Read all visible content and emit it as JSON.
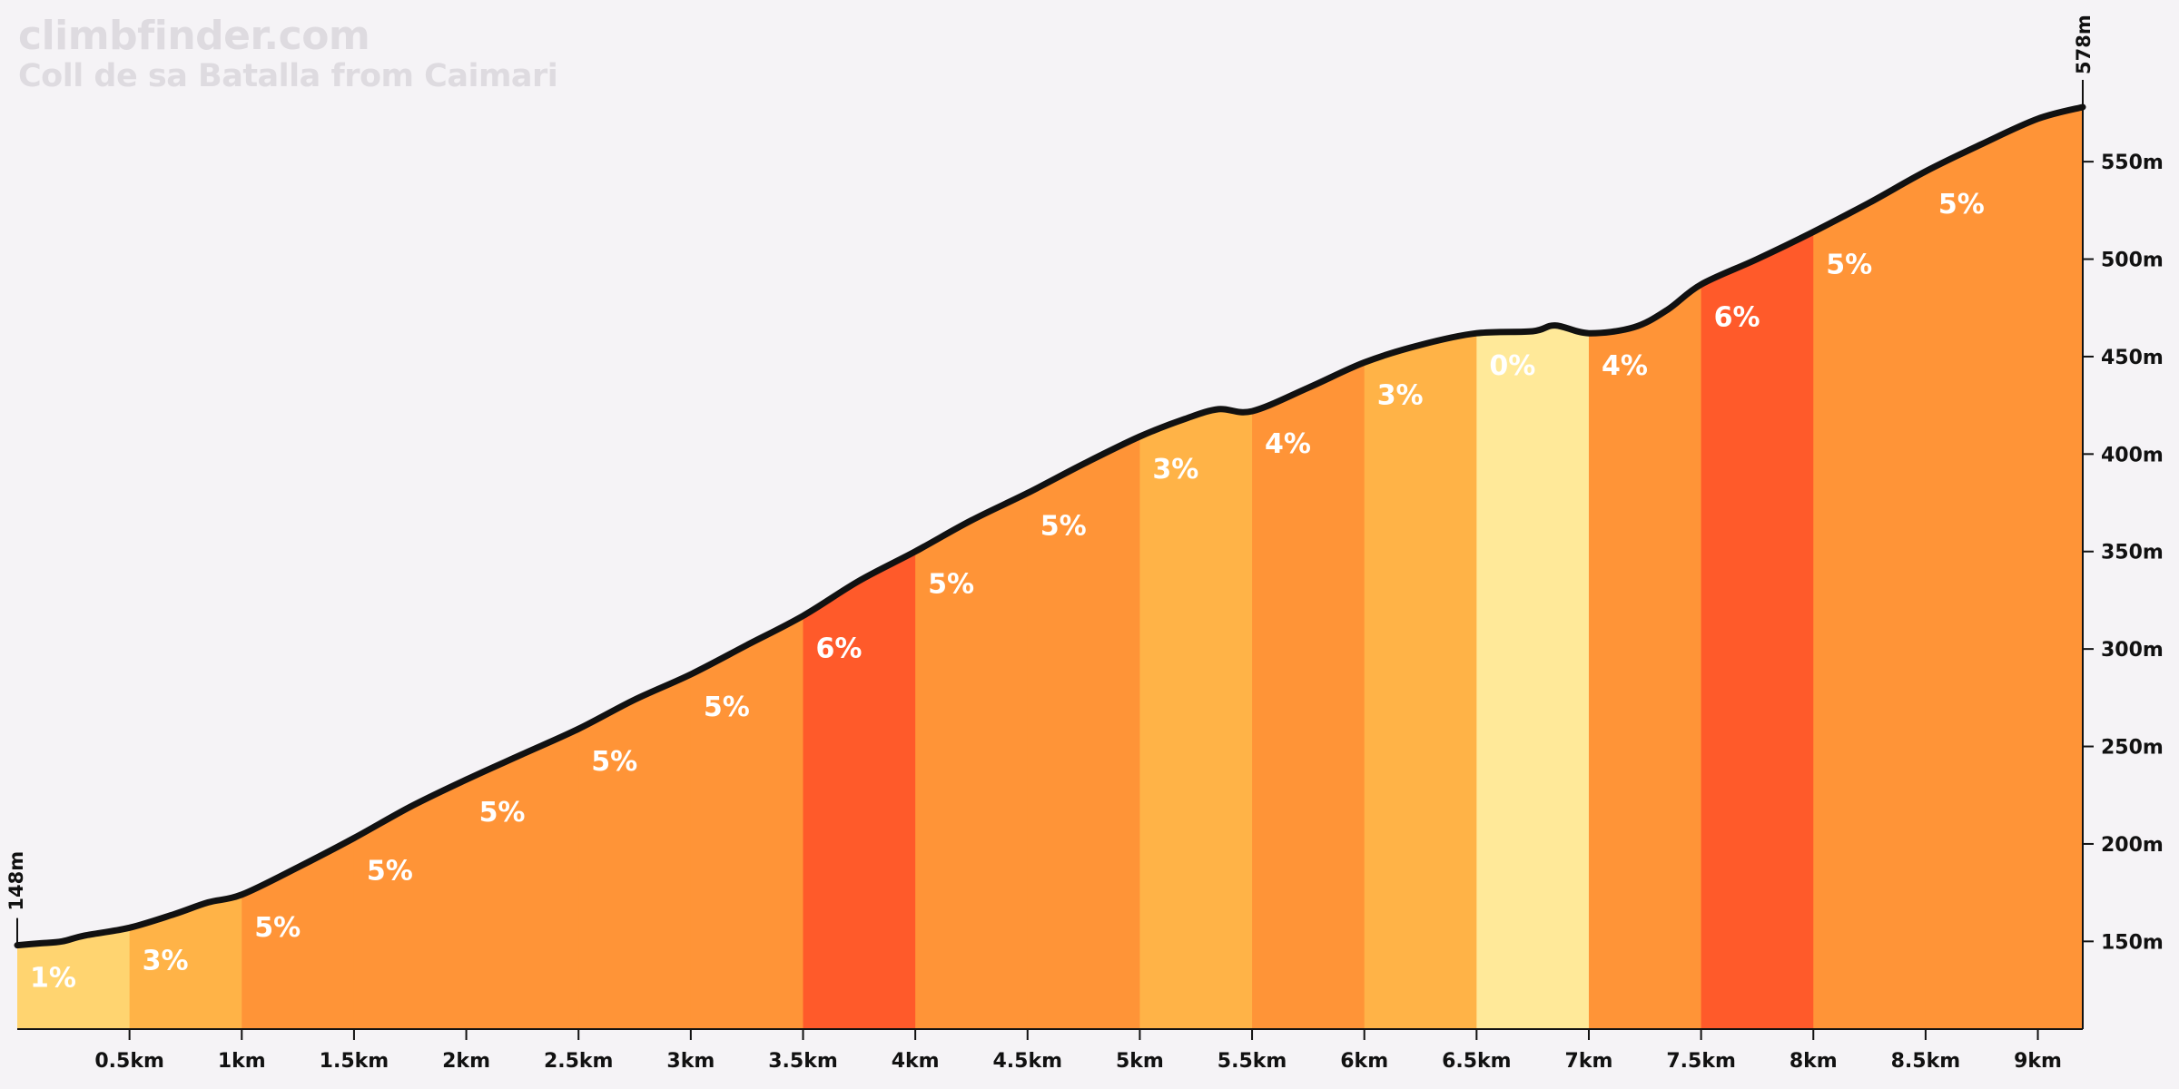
{
  "watermark": {
    "site": "climbfinder.com",
    "climb": "Coll de sa Batalla from Caimari"
  },
  "chart_data": {
    "type": "area",
    "title": "Coll de sa Batalla from Caimari",
    "xlabel": "",
    "ylabel": "",
    "xlim_km": [
      0,
      9.2
    ],
    "ylim_m": [
      105,
      578
    ],
    "x_ticks": [
      {
        "value": 0.5,
        "label": "0.5km"
      },
      {
        "value": 1,
        "label": "1km"
      },
      {
        "value": 1.5,
        "label": "1.5km"
      },
      {
        "value": 2,
        "label": "2km"
      },
      {
        "value": 2.5,
        "label": "2.5km"
      },
      {
        "value": 3,
        "label": "3km"
      },
      {
        "value": 3.5,
        "label": "3.5km"
      },
      {
        "value": 4,
        "label": "4km"
      },
      {
        "value": 4.5,
        "label": "4.5km"
      },
      {
        "value": 5,
        "label": "5km"
      },
      {
        "value": 5.5,
        "label": "5.5km"
      },
      {
        "value": 6,
        "label": "6km"
      },
      {
        "value": 6.5,
        "label": "6.5km"
      },
      {
        "value": 7,
        "label": "7km"
      },
      {
        "value": 7.5,
        "label": "7.5km"
      },
      {
        "value": 8,
        "label": "8km"
      },
      {
        "value": 8.5,
        "label": "8.5km"
      },
      {
        "value": 9,
        "label": "9km"
      }
    ],
    "y_ticks": [
      {
        "value": 150,
        "label": "150m"
      },
      {
        "value": 200,
        "label": "200m"
      },
      {
        "value": 250,
        "label": "250m"
      },
      {
        "value": 300,
        "label": "300m"
      },
      {
        "value": 350,
        "label": "350m"
      },
      {
        "value": 400,
        "label": "400m"
      },
      {
        "value": 450,
        "label": "450m"
      },
      {
        "value": 500,
        "label": "500m"
      },
      {
        "value": 550,
        "label": "550m"
      }
    ],
    "start_label": "148m",
    "end_label": "578m",
    "profile": {
      "x": [
        0,
        0.1,
        0.2,
        0.3,
        0.5,
        0.7,
        0.85,
        1.0,
        1.25,
        1.5,
        1.75,
        2.0,
        2.25,
        2.5,
        2.75,
        3.0,
        3.25,
        3.5,
        3.75,
        4.0,
        4.25,
        4.5,
        4.75,
        5.0,
        5.2,
        5.35,
        5.5,
        5.75,
        6.0,
        6.25,
        6.5,
        6.75,
        6.85,
        7.0,
        7.2,
        7.35,
        7.5,
        7.75,
        8.0,
        8.25,
        8.5,
        8.75,
        9.0,
        9.2
      ],
      "y": [
        148,
        149,
        150,
        153,
        157,
        164,
        170,
        174,
        188,
        203,
        219,
        233,
        246,
        259,
        274,
        287,
        302,
        317,
        335,
        350,
        366,
        380,
        395,
        409,
        418,
        423,
        422,
        434,
        447,
        456,
        462,
        463,
        466,
        462,
        465,
        474,
        487,
        500,
        514,
        529,
        545,
        559,
        572,
        578
      ]
    },
    "segments": [
      {
        "start": 0.0,
        "end": 0.5,
        "gradient": "1%",
        "color": "#ffd470"
      },
      {
        "start": 0.5,
        "end": 1.0,
        "gradient": "3%",
        "color": "#ffb347"
      },
      {
        "start": 1.0,
        "end": 1.5,
        "gradient": "5%",
        "color": "#ff9437"
      },
      {
        "start": 1.5,
        "end": 2.0,
        "gradient": "5%",
        "color": "#ff9437"
      },
      {
        "start": 2.0,
        "end": 2.5,
        "gradient": "5%",
        "color": "#ff9437"
      },
      {
        "start": 2.5,
        "end": 3.0,
        "gradient": "5%",
        "color": "#ff9437"
      },
      {
        "start": 3.0,
        "end": 3.5,
        "gradient": "5%",
        "color": "#ff9437"
      },
      {
        "start": 3.5,
        "end": 4.0,
        "gradient": "6%",
        "color": "#ff5a2a"
      },
      {
        "start": 4.0,
        "end": 4.5,
        "gradient": "5%",
        "color": "#ff9437"
      },
      {
        "start": 4.5,
        "end": 5.0,
        "gradient": "5%",
        "color": "#ff9437"
      },
      {
        "start": 5.0,
        "end": 5.5,
        "gradient": "3%",
        "color": "#ffb347"
      },
      {
        "start": 5.5,
        "end": 6.0,
        "gradient": "4%",
        "color": "#ff9437"
      },
      {
        "start": 6.0,
        "end": 6.5,
        "gradient": "3%",
        "color": "#ffb347"
      },
      {
        "start": 6.5,
        "end": 7.0,
        "gradient": "0%",
        "color": "#ffe999"
      },
      {
        "start": 7.0,
        "end": 7.5,
        "gradient": "4%",
        "color": "#ff9437"
      },
      {
        "start": 7.5,
        "end": 8.0,
        "gradient": "6%",
        "color": "#ff5a2a"
      },
      {
        "start": 8.0,
        "end": 8.5,
        "gradient": "5%",
        "color": "#ff9437"
      },
      {
        "start": 8.5,
        "end": 9.2,
        "gradient": "5%",
        "color": "#ff9437"
      }
    ],
    "line_color": "#111111",
    "grid": false,
    "legend": "none"
  }
}
